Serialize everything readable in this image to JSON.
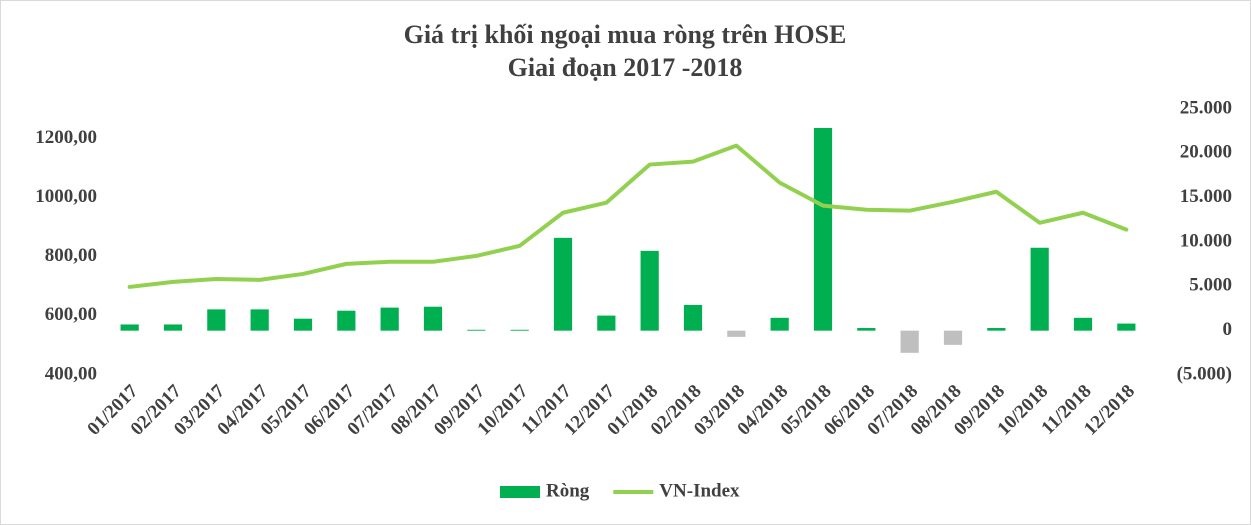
{
  "chart_data": {
    "type": "combo",
    "title": "Giá trị khối ngoại mua ròng trên HOSE",
    "subtitle": "Giai đoạn 2017 -2018",
    "categories": [
      "01/2017",
      "02/2017",
      "03/2017",
      "04/2017",
      "05/2017",
      "06/2017",
      "07/2017",
      "08/2017",
      "09/2017",
      "10/2017",
      "11/2017",
      "12/2017",
      "01/2018",
      "02/2018",
      "03/2018",
      "04/2018",
      "05/2018",
      "06/2018",
      "07/2018",
      "08/2018",
      "09/2018",
      "10/2018",
      "11/2018",
      "12/2018"
    ],
    "series": [
      {
        "name": "Ròng",
        "type": "bar",
        "axis": "y2",
        "color": "#00b050",
        "negative_color": "#bfbfbf",
        "values": [
          700,
          700,
          2400,
          2400,
          1350,
          2250,
          2600,
          2700,
          100,
          100,
          10470,
          1700,
          9000,
          2900,
          -700,
          1450,
          22860,
          300,
          -2500,
          -1600,
          300,
          9350,
          1450,
          800
        ]
      },
      {
        "name": "VN-Index",
        "type": "line",
        "axis": "y",
        "color": "#92d050",
        "values": [
          698,
          715,
          725,
          722,
          742,
          776,
          783,
          783,
          803,
          837,
          949,
          983,
          1112,
          1122,
          1176,
          1051,
          973,
          959,
          956,
          986,
          1020,
          915,
          949,
          892
        ]
      }
    ],
    "ylim": [
      400,
      1300
    ],
    "yticks": [
      {
        "value": 400,
        "label": "400,00"
      },
      {
        "value": 600,
        "label": "600,00"
      },
      {
        "value": 800,
        "label": "800,00"
      },
      {
        "value": 1000,
        "label": "1000,00"
      },
      {
        "value": 1200,
        "label": "1200,00"
      }
    ],
    "y2lim": [
      -5000,
      25000
    ],
    "y2ticks": [
      {
        "value": -5000,
        "label": "(5.000)"
      },
      0,
      {
        "value": 5000,
        "label": "5.000"
      },
      {
        "value": 10000,
        "label": "10.000"
      },
      {
        "value": 15000,
        "label": "15.000"
      },
      {
        "value": 20000,
        "label": "20.000"
      },
      {
        "value": 25000,
        "label": "25.000"
      }
    ],
    "grid": false,
    "legend": "bottom"
  }
}
